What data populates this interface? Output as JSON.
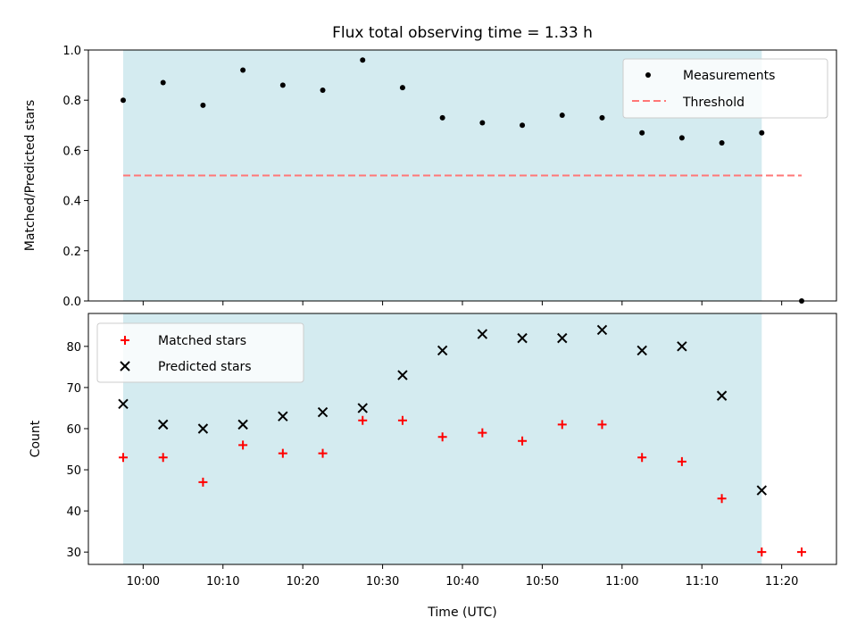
{
  "title": "Flux total observing time = 1.33 h",
  "colors": {
    "shade": "#d4ebf0",
    "measurement": "#000000",
    "threshold": "#ff7777",
    "matched": "#ff0000",
    "predicted": "#000000"
  },
  "chart_data": [
    {
      "type": "scatter",
      "ylabel": "Matched/Predicted stars",
      "ylim": [
        0,
        1
      ],
      "yticks": [
        "0.0",
        "0.2",
        "0.4",
        "0.6",
        "0.8",
        "1.0"
      ],
      "legend": {
        "placement": "top-right",
        "entries": [
          "Measurements",
          "Threshold"
        ]
      },
      "shaded_span": [
        "09:57:30",
        "11:17:30"
      ],
      "threshold": {
        "name": "Threshold",
        "value": 0.5,
        "x_range": [
          "09:57:30",
          "11:22:30"
        ]
      },
      "series": [
        {
          "name": "Measurements",
          "x": [
            "09:57:30",
            "10:02:30",
            "10:07:30",
            "10:12:30",
            "10:17:30",
            "10:22:30",
            "10:27:30",
            "10:32:30",
            "10:37:30",
            "10:42:30",
            "10:47:30",
            "10:52:30",
            "10:57:30",
            "11:02:30",
            "11:07:30",
            "11:12:30",
            "11:17:30",
            "11:22:30"
          ],
          "y": [
            0.8,
            0.87,
            0.78,
            0.92,
            0.86,
            0.84,
            0.96,
            0.85,
            0.73,
            0.71,
            0.7,
            0.74,
            0.73,
            0.67,
            0.65,
            0.63,
            0.67,
            0.0
          ]
        }
      ]
    },
    {
      "type": "scatter",
      "ylabel": "Count",
      "xlabel": "Time (UTC)",
      "ylim": [
        27,
        88
      ],
      "yticks": [
        "30",
        "40",
        "50",
        "60",
        "70",
        "80"
      ],
      "xticks": [
        "10:00",
        "10:10",
        "10:20",
        "10:30",
        "10:40",
        "10:50",
        "11:00",
        "11:10",
        "11:20"
      ],
      "legend": {
        "placement": "top-left",
        "entries": [
          "Matched stars",
          "Predicted stars"
        ]
      },
      "shaded_span": [
        "09:57:30",
        "11:17:30"
      ],
      "series": [
        {
          "name": "Matched stars",
          "marker": "plus",
          "x": [
            "09:57:30",
            "10:02:30",
            "10:07:30",
            "10:12:30",
            "10:17:30",
            "10:22:30",
            "10:27:30",
            "10:32:30",
            "10:37:30",
            "10:42:30",
            "10:47:30",
            "10:52:30",
            "10:57:30",
            "11:02:30",
            "11:07:30",
            "11:12:30",
            "11:17:30",
            "11:22:30"
          ],
          "y": [
            53,
            53,
            47,
            56,
            54,
            54,
            62,
            62,
            58,
            59,
            57,
            61,
            61,
            53,
            52,
            43,
            30,
            30
          ]
        },
        {
          "name": "Predicted stars",
          "marker": "x",
          "x": [
            "09:57:30",
            "10:02:30",
            "10:07:30",
            "10:12:30",
            "10:17:30",
            "10:22:30",
            "10:27:30",
            "10:32:30",
            "10:37:30",
            "10:42:30",
            "10:47:30",
            "10:52:30",
            "10:57:30",
            "11:02:30",
            "11:07:30",
            "11:12:30",
            "11:17:30"
          ],
          "y": [
            66,
            61,
            60,
            61,
            63,
            64,
            65,
            73,
            79,
            83,
            82,
            82,
            84,
            79,
            80,
            68,
            45
          ]
        }
      ]
    }
  ]
}
